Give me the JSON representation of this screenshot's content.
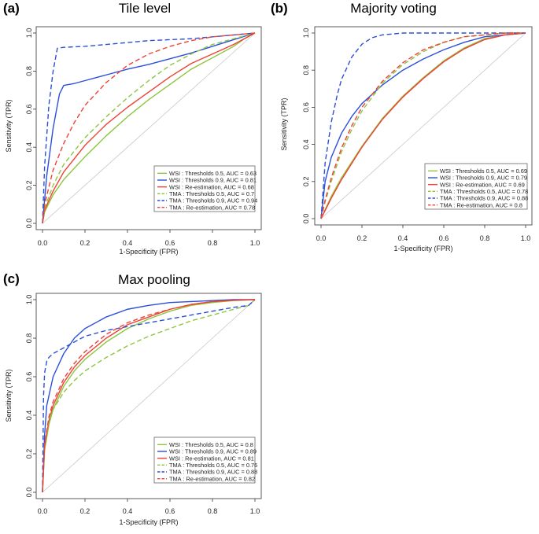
{
  "colors": {
    "green": "#8dc63f",
    "blue": "#2b50d8",
    "red": "#ef4135",
    "diagonal": "#c8c8c8",
    "axis": "#333333"
  },
  "chart_data": [
    {
      "id": "a",
      "panel_label": "(a)",
      "type": "line",
      "title": "Tile level",
      "xlabel": "1-Specificity (FPR)",
      "ylabel": "Sensitivity (TPR)",
      "xlim": [
        0,
        1
      ],
      "ylim": [
        0,
        1
      ],
      "ticks": [
        "0.0",
        "0.2",
        "0.4",
        "0.6",
        "0.8",
        "1.0"
      ],
      "legend_position": "bottom-right",
      "series": [
        {
          "name": "WSI : Thresholds 0.5, AUC = 0.63",
          "color": "green",
          "dash": "solid",
          "x": [
            0,
            0.01,
            0.05,
            0.1,
            0.2,
            0.3,
            0.4,
            0.5,
            0.6,
            0.7,
            0.8,
            0.9,
            0.95,
            1.0
          ],
          "y": [
            0,
            0.06,
            0.15,
            0.23,
            0.35,
            0.46,
            0.56,
            0.65,
            0.73,
            0.81,
            0.87,
            0.93,
            0.97,
            1.0
          ]
        },
        {
          "name": "WSI : Thresholds 0.9, AUC = 0.81",
          "color": "blue",
          "dash": "solid",
          "x": [
            0,
            0.02,
            0.05,
            0.08,
            0.1,
            0.15,
            0.2,
            0.3,
            0.4,
            0.5,
            0.6,
            0.7,
            0.8,
            0.9,
            1.0
          ],
          "y": [
            0,
            0.25,
            0.5,
            0.68,
            0.725,
            0.735,
            0.75,
            0.78,
            0.81,
            0.835,
            0.865,
            0.895,
            0.93,
            0.965,
            1.0
          ]
        },
        {
          "name": "WSI : Re-estimation, AUC = 0.68",
          "color": "red",
          "dash": "solid",
          "x": [
            0,
            0.01,
            0.05,
            0.1,
            0.2,
            0.3,
            0.4,
            0.5,
            0.6,
            0.7,
            0.8,
            0.9,
            0.95,
            1.0
          ],
          "y": [
            0,
            0.07,
            0.17,
            0.27,
            0.41,
            0.52,
            0.61,
            0.69,
            0.77,
            0.84,
            0.89,
            0.94,
            0.97,
            1.0
          ]
        },
        {
          "name": "TMA : Thresholds 0.5, AUC = 0.7",
          "color": "green",
          "dash": "dashed",
          "x": [
            0,
            0.01,
            0.05,
            0.1,
            0.2,
            0.3,
            0.4,
            0.5,
            0.6,
            0.7,
            0.8,
            0.9,
            0.95,
            1.0
          ],
          "y": [
            0,
            0.08,
            0.2,
            0.31,
            0.45,
            0.56,
            0.66,
            0.75,
            0.83,
            0.89,
            0.94,
            0.97,
            0.985,
            1.0
          ]
        },
        {
          "name": "TMA : Thresholds 0.9, AUC = 0.94",
          "color": "blue",
          "dash": "dashed",
          "x": [
            0,
            0.01,
            0.03,
            0.05,
            0.07,
            0.1,
            0.2,
            0.3,
            0.4,
            0.5,
            0.6,
            0.7,
            0.8,
            0.9,
            1.0
          ],
          "y": [
            0,
            0.3,
            0.62,
            0.8,
            0.92,
            0.925,
            0.93,
            0.94,
            0.95,
            0.96,
            0.965,
            0.97,
            0.98,
            0.99,
            1.0
          ]
        },
        {
          "name": "TMA : Re-estimation, AUC = 0.78",
          "color": "red",
          "dash": "dashed",
          "x": [
            0,
            0.01,
            0.05,
            0.1,
            0.15,
            0.2,
            0.3,
            0.4,
            0.5,
            0.6,
            0.7,
            0.8,
            0.9,
            1.0
          ],
          "y": [
            0,
            0.1,
            0.28,
            0.42,
            0.53,
            0.62,
            0.74,
            0.83,
            0.89,
            0.93,
            0.96,
            0.98,
            0.99,
            1.0
          ]
        }
      ]
    },
    {
      "id": "b",
      "panel_label": "(b)",
      "type": "line",
      "title": "Majority voting",
      "xlabel": "1-Specificity (FPR)",
      "ylabel": "Sensitivity (TPR)",
      "xlim": [
        0,
        1
      ],
      "ylim": [
        0,
        1
      ],
      "ticks": [
        "0.0",
        "0.2",
        "0.4",
        "0.6",
        "0.8",
        "1.0"
      ],
      "legend_position": "bottom-right",
      "series": [
        {
          "name": "WSI : Thresholds 0.5, AUC = 0.69",
          "color": "green",
          "dash": "solid",
          "x": [
            0,
            0.05,
            0.1,
            0.2,
            0.3,
            0.4,
            0.5,
            0.6,
            0.7,
            0.8,
            0.9,
            1.0
          ],
          "y": [
            0,
            0.12,
            0.22,
            0.39,
            0.54,
            0.66,
            0.76,
            0.85,
            0.92,
            0.97,
            0.99,
            1.0
          ]
        },
        {
          "name": "WSI : Thresholds 0.9, AUC = 0.79",
          "color": "blue",
          "dash": "solid",
          "x": [
            0,
            0.02,
            0.05,
            0.1,
            0.15,
            0.2,
            0.3,
            0.4,
            0.5,
            0.6,
            0.7,
            0.8,
            0.9,
            1.0
          ],
          "y": [
            0,
            0.2,
            0.33,
            0.46,
            0.55,
            0.62,
            0.72,
            0.8,
            0.86,
            0.91,
            0.95,
            0.98,
            0.99,
            1.0
          ]
        },
        {
          "name": "WSI : Re-estimation, AUC = 0.69",
          "color": "red",
          "dash": "solid",
          "x": [
            0,
            0.05,
            0.1,
            0.2,
            0.3,
            0.4,
            0.5,
            0.6,
            0.7,
            0.8,
            0.9,
            1.0
          ],
          "y": [
            0,
            0.11,
            0.21,
            0.385,
            0.535,
            0.655,
            0.755,
            0.845,
            0.915,
            0.965,
            0.99,
            1.0
          ]
        },
        {
          "name": "TMA : Thresholds 0.5, AUC = 0.78",
          "color": "green",
          "dash": "dashed",
          "x": [
            0,
            0.02,
            0.05,
            0.1,
            0.15,
            0.2,
            0.3,
            0.4,
            0.5,
            0.6,
            0.7,
            0.8,
            0.9,
            1.0
          ],
          "y": [
            0,
            0.09,
            0.2,
            0.36,
            0.48,
            0.58,
            0.73,
            0.83,
            0.9,
            0.95,
            0.98,
            0.99,
            1.0,
            1.0
          ]
        },
        {
          "name": "TMA : Thresholds 0.9, AUC = 0.88",
          "color": "blue",
          "dash": "dashed",
          "x": [
            0,
            0.02,
            0.05,
            0.08,
            0.1,
            0.15,
            0.2,
            0.25,
            0.3,
            0.4,
            0.5,
            0.6,
            1.0
          ],
          "y": [
            0,
            0.3,
            0.52,
            0.67,
            0.75,
            0.87,
            0.94,
            0.975,
            0.99,
            1.0,
            1.0,
            1.0,
            1.0
          ]
        },
        {
          "name": "TMA : Re-estimation, AUC = 0.8",
          "color": "red",
          "dash": "dashed",
          "x": [
            0,
            0.02,
            0.05,
            0.1,
            0.15,
            0.2,
            0.3,
            0.4,
            0.5,
            0.6,
            0.7,
            0.8,
            0.9,
            1.0
          ],
          "y": [
            0,
            0.1,
            0.22,
            0.38,
            0.5,
            0.6,
            0.74,
            0.84,
            0.91,
            0.95,
            0.98,
            0.99,
            1.0,
            1.0
          ]
        }
      ]
    },
    {
      "id": "c",
      "panel_label": "(c)",
      "type": "line",
      "title": "Max pooling",
      "xlabel": "1-Specificity (FPR)",
      "ylabel": "Sensitivity (TPR)",
      "xlim": [
        0,
        1
      ],
      "ylim": [
        0,
        1
      ],
      "ticks": [
        "0.0",
        "0.2",
        "0.4",
        "0.6",
        "0.8",
        "1.0"
      ],
      "legend_position": "bottom-right",
      "series": [
        {
          "name": "WSI : Thresholds 0.5, AUC = 0.8",
          "color": "green",
          "dash": "solid",
          "x": [
            0,
            0.01,
            0.03,
            0.05,
            0.1,
            0.15,
            0.2,
            0.3,
            0.4,
            0.5,
            0.6,
            0.7,
            0.8,
            0.9,
            1.0
          ],
          "y": [
            0,
            0.22,
            0.35,
            0.43,
            0.55,
            0.63,
            0.69,
            0.78,
            0.85,
            0.9,
            0.94,
            0.97,
            0.985,
            0.995,
            1.0
          ]
        },
        {
          "name": "WSI : Thresholds 0.9, AUC = 0.89",
          "color": "blue",
          "dash": "solid",
          "x": [
            0,
            0.01,
            0.02,
            0.05,
            0.1,
            0.15,
            0.2,
            0.3,
            0.4,
            0.5,
            0.6,
            0.7,
            0.8,
            0.9,
            1.0
          ],
          "y": [
            0,
            0.3,
            0.45,
            0.6,
            0.72,
            0.8,
            0.85,
            0.91,
            0.95,
            0.97,
            0.985,
            0.99,
            0.995,
            1.0,
            1.0
          ]
        },
        {
          "name": "WSI : Re-estimation, AUC = 0.81",
          "color": "red",
          "dash": "solid",
          "x": [
            0,
            0.01,
            0.03,
            0.05,
            0.1,
            0.15,
            0.2,
            0.3,
            0.4,
            0.5,
            0.6,
            0.7,
            0.8,
            0.9,
            1.0
          ],
          "y": [
            0,
            0.24,
            0.37,
            0.45,
            0.57,
            0.65,
            0.71,
            0.8,
            0.87,
            0.91,
            0.95,
            0.975,
            0.99,
            0.997,
            1.0
          ]
        },
        {
          "name": "TMA : Thresholds 0.5, AUC = 0.76",
          "color": "green",
          "dash": "dashed",
          "x": [
            0,
            0.01,
            0.03,
            0.05,
            0.1,
            0.15,
            0.2,
            0.3,
            0.4,
            0.5,
            0.6,
            0.7,
            0.8,
            0.9,
            0.97,
            1.0
          ],
          "y": [
            0,
            0.25,
            0.37,
            0.43,
            0.52,
            0.58,
            0.63,
            0.7,
            0.76,
            0.81,
            0.85,
            0.89,
            0.92,
            0.95,
            0.97,
            1.0
          ]
        },
        {
          "name": "TMA : Thresholds 0.9, AUC = 0.88",
          "color": "blue",
          "dash": "dashed",
          "x": [
            0,
            0.005,
            0.01,
            0.02,
            0.03,
            0.05,
            0.1,
            0.15,
            0.2,
            0.3,
            0.4,
            0.5,
            0.6,
            0.7,
            0.8,
            0.9,
            0.97,
            1.0
          ],
          "y": [
            0,
            0.5,
            0.62,
            0.68,
            0.7,
            0.72,
            0.75,
            0.78,
            0.81,
            0.84,
            0.86,
            0.88,
            0.9,
            0.92,
            0.94,
            0.96,
            0.97,
            1.0
          ]
        },
        {
          "name": "TMA : Re-estimation, AUC = 0.82",
          "color": "red",
          "dash": "dashed",
          "x": [
            0,
            0.01,
            0.03,
            0.05,
            0.1,
            0.15,
            0.2,
            0.3,
            0.4,
            0.5,
            0.6,
            0.7,
            0.8,
            0.9,
            1.0
          ],
          "y": [
            0,
            0.25,
            0.39,
            0.47,
            0.59,
            0.67,
            0.73,
            0.82,
            0.88,
            0.92,
            0.95,
            0.975,
            0.99,
            0.997,
            1.0
          ]
        }
      ]
    }
  ]
}
